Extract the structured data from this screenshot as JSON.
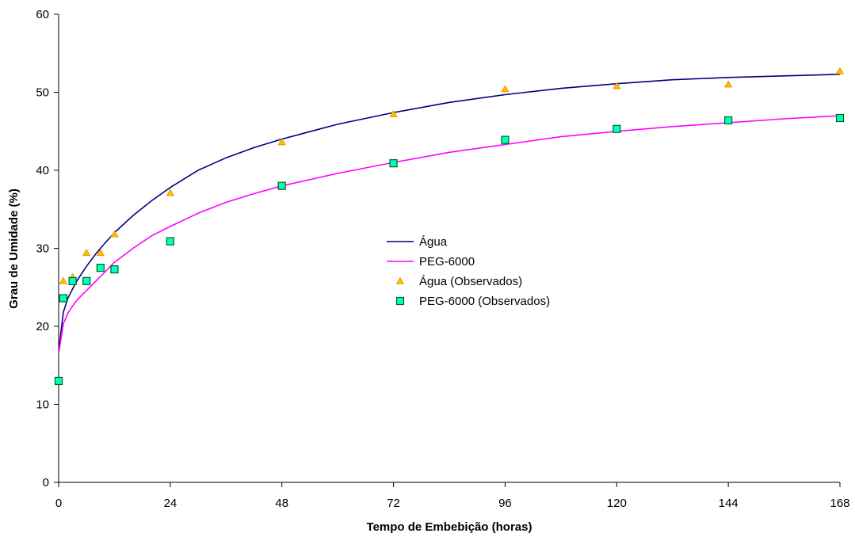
{
  "chart_data": {
    "type": "line",
    "title": "",
    "xlabel": "Tempo de Embebição (horas)",
    "ylabel": "Grau de Umidade (%)",
    "xlim": [
      0,
      168
    ],
    "ylim": [
      0,
      60
    ],
    "xticks": [
      0,
      24,
      48,
      72,
      96,
      120,
      144,
      168
    ],
    "yticks": [
      0,
      10,
      20,
      30,
      40,
      50,
      60
    ],
    "grid": false,
    "legend_position": "center",
    "series": [
      {
        "name": "Água",
        "kind": "line",
        "color": "#000080",
        "x": [
          0,
          1,
          2,
          3,
          4,
          6,
          8,
          10,
          12,
          16,
          20,
          24,
          30,
          36,
          42,
          48,
          60,
          72,
          84,
          96,
          108,
          120,
          132,
          144,
          156,
          168
        ],
        "y": [
          16.8,
          21.8,
          23.6,
          24.8,
          25.9,
          27.7,
          29.3,
          30.7,
          32.0,
          34.2,
          36.1,
          37.8,
          40.0,
          41.6,
          42.9,
          44.0,
          45.9,
          47.4,
          48.7,
          49.7,
          50.5,
          51.1,
          51.6,
          51.9,
          52.1,
          52.3
        ]
      },
      {
        "name": "PEG-6000",
        "kind": "line",
        "color": "#FF00FF",
        "x": [
          0,
          1,
          2,
          3,
          4,
          6,
          8,
          10,
          12,
          16,
          20,
          24,
          30,
          36,
          42,
          48,
          60,
          72,
          84,
          96,
          108,
          120,
          132,
          144,
          156,
          168
        ],
        "y": [
          16.5,
          20.3,
          21.7,
          22.6,
          23.4,
          24.6,
          25.8,
          27.0,
          28.2,
          30.0,
          31.6,
          32.8,
          34.5,
          35.9,
          37.0,
          38.0,
          39.6,
          41.0,
          42.3,
          43.3,
          44.3,
          45.0,
          45.6,
          46.1,
          46.6,
          47.0
        ]
      },
      {
        "name": "Água (Observados)",
        "kind": "scatter",
        "marker": "triangle",
        "color": "#FFC000",
        "x": [
          1,
          3,
          6,
          9,
          12,
          24,
          48,
          72,
          96,
          120,
          144,
          168
        ],
        "y": [
          25.8,
          26.3,
          29.4,
          29.4,
          31.8,
          37.1,
          43.6,
          47.2,
          50.4,
          50.8,
          51.0,
          52.7
        ]
      },
      {
        "name": "PEG-6000 (Observados)",
        "kind": "scatter",
        "marker": "square",
        "color": "#00FFCC",
        "x": [
          0,
          1,
          3,
          6,
          9,
          12,
          24,
          48,
          72,
          96,
          120,
          144,
          168
        ],
        "y": [
          13.0,
          23.6,
          25.8,
          25.8,
          27.5,
          27.3,
          30.9,
          38.0,
          40.9,
          43.9,
          45.3,
          46.4,
          46.7
        ]
      }
    ]
  }
}
